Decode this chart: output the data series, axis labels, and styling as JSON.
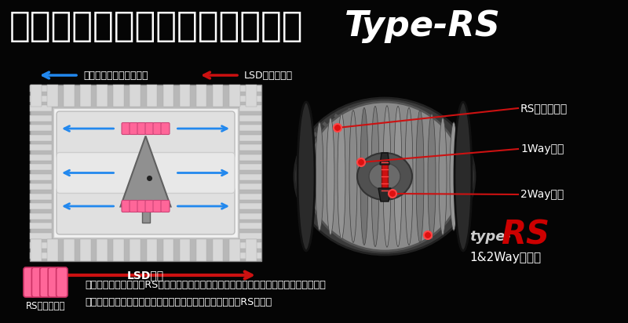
{
  "bg_color": "#050505",
  "title_color": "#ffffff",
  "title_fontsize": 32,
  "arrow_color_blue": "#2288ee",
  "arrow_color_red": "#cc1111",
  "label_color_white": "#ffffff",
  "label_color_red": "#cc0000",
  "line_color_red": "#cc1111",
  "spring_color": "#ff6699",
  "diagram_bg_outer": "#c0c0c0",
  "diagram_bg_inner": "#e8e8e8",
  "diagram_bg_white": "#f0f0f0",
  "fin_color": "#b8b8b8",
  "cam_color": "#888888",
  "legend_blue_text": "イニシャルトルクの方向",
  "legend_red_text": "LSD作動の方向",
  "label_rs_spring": "RSスプリング",
  "label_1way": "1Wayカム",
  "label_2way": "2Wayカム",
  "label_1and2way": "1&2Wayタイプ",
  "label_lsd": "LSD作動",
  "label_rs_spring_bottom": "RSスプリング",
  "title_jp": "低イニシャルトルクで作動する",
  "title_en": "Type-RS",
  "desc_line1": "特殊精密スプリング（RSスプリング）によって、センターからプレッシャーリングを押",
  "desc_line2": "し拡げて、低イニシャルでイニシャルトルクを発生させるRSタイプ"
}
